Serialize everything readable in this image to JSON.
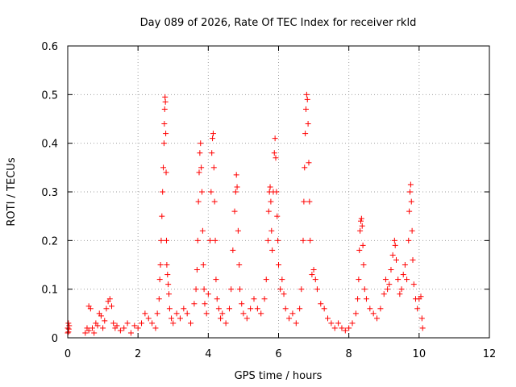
{
  "chart_data": {
    "type": "scatter",
    "title": "Day 089 of 2026, Rate Of TEC Index for receiver rkld",
    "xlabel": "GPS time / hours",
    "ylabel": "ROTI / TECUs",
    "xlim": [
      0,
      12
    ],
    "ylim": [
      0,
      0.6
    ],
    "x_ticks": [
      "0",
      "2",
      "4",
      "6",
      "8",
      "10",
      "12"
    ],
    "y_ticks": [
      "0",
      "0.1",
      "0.2",
      "0.3",
      "0.4",
      "0.5",
      "0.6"
    ],
    "grid": true,
    "marker": "plus",
    "marker_color": "#ff0000",
    "series": [
      {
        "points": [
          [
            0.0,
            0.01
          ],
          [
            0.0,
            0.02
          ],
          [
            0.02,
            0.03
          ],
          [
            0.02,
            0.012
          ],
          [
            0.03,
            0.018
          ],
          [
            0.04,
            0.025
          ],
          [
            0.5,
            0.01
          ],
          [
            0.55,
            0.02
          ],
          [
            0.6,
            0.015
          ],
          [
            0.6,
            0.065
          ],
          [
            0.65,
            0.06
          ],
          [
            0.7,
            0.02
          ],
          [
            0.75,
            0.01
          ],
          [
            0.8,
            0.03
          ],
          [
            0.85,
            0.025
          ],
          [
            0.9,
            0.05
          ],
          [
            0.95,
            0.045
          ],
          [
            1.0,
            0.02
          ],
          [
            1.05,
            0.035
          ],
          [
            1.1,
            0.06
          ],
          [
            1.15,
            0.075
          ],
          [
            1.2,
            0.08
          ],
          [
            1.25,
            0.065
          ],
          [
            1.3,
            0.03
          ],
          [
            1.35,
            0.02
          ],
          [
            1.4,
            0.025
          ],
          [
            1.5,
            0.015
          ],
          [
            1.6,
            0.02
          ],
          [
            1.7,
            0.03
          ],
          [
            1.8,
            0.01
          ],
          [
            1.9,
            0.025
          ],
          [
            2.0,
            0.02
          ],
          [
            2.1,
            0.03
          ],
          [
            2.2,
            0.05
          ],
          [
            2.3,
            0.04
          ],
          [
            2.4,
            0.03
          ],
          [
            2.5,
            0.02
          ],
          [
            2.55,
            0.05
          ],
          [
            2.6,
            0.08
          ],
          [
            2.62,
            0.12
          ],
          [
            2.64,
            0.15
          ],
          [
            2.66,
            0.2
          ],
          [
            2.68,
            0.25
          ],
          [
            2.7,
            0.3
          ],
          [
            2.72,
            0.35
          ],
          [
            2.74,
            0.4
          ],
          [
            2.75,
            0.44
          ],
          [
            2.76,
            0.47
          ],
          [
            2.77,
            0.495
          ],
          [
            2.78,
            0.485
          ],
          [
            2.79,
            0.42
          ],
          [
            2.8,
            0.34
          ],
          [
            2.81,
            0.2
          ],
          [
            2.82,
            0.15
          ],
          [
            2.84,
            0.13
          ],
          [
            2.86,
            0.11
          ],
          [
            2.88,
            0.09
          ],
          [
            2.9,
            0.06
          ],
          [
            2.95,
            0.04
          ],
          [
            3.0,
            0.03
          ],
          [
            3.1,
            0.05
          ],
          [
            3.2,
            0.04
          ],
          [
            3.3,
            0.06
          ],
          [
            3.4,
            0.05
          ],
          [
            3.5,
            0.03
          ],
          [
            3.6,
            0.07
          ],
          [
            3.65,
            0.1
          ],
          [
            3.68,
            0.14
          ],
          [
            3.7,
            0.2
          ],
          [
            3.72,
            0.28
          ],
          [
            3.74,
            0.34
          ],
          [
            3.76,
            0.38
          ],
          [
            3.78,
            0.4
          ],
          [
            3.8,
            0.35
          ],
          [
            3.82,
            0.3
          ],
          [
            3.84,
            0.22
          ],
          [
            3.86,
            0.15
          ],
          [
            3.88,
            0.1
          ],
          [
            3.9,
            0.07
          ],
          [
            3.95,
            0.05
          ],
          [
            4.0,
            0.09
          ],
          [
            4.05,
            0.2
          ],
          [
            4.08,
            0.3
          ],
          [
            4.1,
            0.38
          ],
          [
            4.12,
            0.41
          ],
          [
            4.14,
            0.42
          ],
          [
            4.16,
            0.35
          ],
          [
            4.18,
            0.28
          ],
          [
            4.2,
            0.2
          ],
          [
            4.22,
            0.12
          ],
          [
            4.25,
            0.08
          ],
          [
            4.3,
            0.06
          ],
          [
            4.35,
            0.04
          ],
          [
            4.4,
            0.05
          ],
          [
            4.5,
            0.03
          ],
          [
            4.6,
            0.06
          ],
          [
            4.65,
            0.1
          ],
          [
            4.7,
            0.18
          ],
          [
            4.75,
            0.26
          ],
          [
            4.78,
            0.3
          ],
          [
            4.8,
            0.335
          ],
          [
            4.82,
            0.31
          ],
          [
            4.85,
            0.22
          ],
          [
            4.88,
            0.15
          ],
          [
            4.9,
            0.1
          ],
          [
            4.95,
            0.07
          ],
          [
            5.0,
            0.05
          ],
          [
            5.1,
            0.04
          ],
          [
            5.2,
            0.06
          ],
          [
            5.3,
            0.08
          ],
          [
            5.4,
            0.06
          ],
          [
            5.5,
            0.05
          ],
          [
            5.6,
            0.08
          ],
          [
            5.65,
            0.12
          ],
          [
            5.7,
            0.2
          ],
          [
            5.72,
            0.26
          ],
          [
            5.74,
            0.3
          ],
          [
            5.76,
            0.31
          ],
          [
            5.78,
            0.28
          ],
          [
            5.8,
            0.22
          ],
          [
            5.82,
            0.18
          ],
          [
            5.85,
            0.3
          ],
          [
            5.88,
            0.38
          ],
          [
            5.9,
            0.41
          ],
          [
            5.92,
            0.37
          ],
          [
            5.94,
            0.3
          ],
          [
            5.96,
            0.25
          ],
          [
            5.98,
            0.2
          ],
          [
            6.0,
            0.15
          ],
          [
            6.05,
            0.1
          ],
          [
            6.1,
            0.12
          ],
          [
            6.15,
            0.09
          ],
          [
            6.2,
            0.06
          ],
          [
            6.3,
            0.04
          ],
          [
            6.4,
            0.05
          ],
          [
            6.5,
            0.03
          ],
          [
            6.6,
            0.06
          ],
          [
            6.65,
            0.1
          ],
          [
            6.7,
            0.2
          ],
          [
            6.72,
            0.28
          ],
          [
            6.74,
            0.35
          ],
          [
            6.76,
            0.42
          ],
          [
            6.78,
            0.47
          ],
          [
            6.8,
            0.5
          ],
          [
            6.82,
            0.49
          ],
          [
            6.84,
            0.44
          ],
          [
            6.86,
            0.36
          ],
          [
            6.88,
            0.28
          ],
          [
            6.9,
            0.2
          ],
          [
            6.95,
            0.13
          ],
          [
            7.0,
            0.14
          ],
          [
            7.05,
            0.12
          ],
          [
            7.1,
            0.1
          ],
          [
            7.2,
            0.07
          ],
          [
            7.3,
            0.06
          ],
          [
            7.4,
            0.04
          ],
          [
            7.5,
            0.03
          ],
          [
            7.6,
            0.02
          ],
          [
            7.7,
            0.03
          ],
          [
            7.8,
            0.02
          ],
          [
            7.9,
            0.015
          ],
          [
            8.0,
            0.02
          ],
          [
            8.1,
            0.03
          ],
          [
            8.2,
            0.05
          ],
          [
            8.25,
            0.08
          ],
          [
            8.28,
            0.12
          ],
          [
            8.3,
            0.18
          ],
          [
            8.32,
            0.22
          ],
          [
            8.34,
            0.24
          ],
          [
            8.36,
            0.245
          ],
          [
            8.38,
            0.23
          ],
          [
            8.4,
            0.19
          ],
          [
            8.42,
            0.15
          ],
          [
            8.45,
            0.1
          ],
          [
            8.5,
            0.08
          ],
          [
            8.6,
            0.06
          ],
          [
            8.7,
            0.05
          ],
          [
            8.8,
            0.04
          ],
          [
            8.9,
            0.06
          ],
          [
            9.0,
            0.09
          ],
          [
            9.05,
            0.12
          ],
          [
            9.1,
            0.1
          ],
          [
            9.15,
            0.11
          ],
          [
            9.2,
            0.14
          ],
          [
            9.25,
            0.17
          ],
          [
            9.3,
            0.2
          ],
          [
            9.32,
            0.19
          ],
          [
            9.35,
            0.16
          ],
          [
            9.4,
            0.12
          ],
          [
            9.45,
            0.09
          ],
          [
            9.5,
            0.1
          ],
          [
            9.55,
            0.13
          ],
          [
            9.6,
            0.15
          ],
          [
            9.65,
            0.12
          ],
          [
            9.7,
            0.2
          ],
          [
            9.72,
            0.26
          ],
          [
            9.74,
            0.3
          ],
          [
            9.76,
            0.315
          ],
          [
            9.78,
            0.28
          ],
          [
            9.8,
            0.22
          ],
          [
            9.82,
            0.16
          ],
          [
            9.85,
            0.11
          ],
          [
            9.9,
            0.08
          ],
          [
            9.95,
            0.06
          ],
          [
            10.0,
            0.08
          ],
          [
            10.05,
            0.085
          ],
          [
            10.08,
            0.04
          ],
          [
            10.1,
            0.02
          ]
        ]
      }
    ]
  }
}
